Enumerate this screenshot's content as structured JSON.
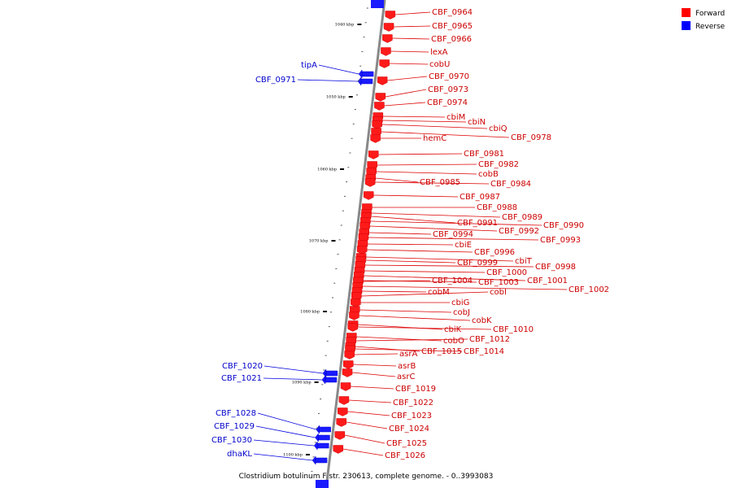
{
  "caption": "Clostridium botulinum F str. 230613, complete genome. - 0..3993083",
  "legend": [
    {
      "label": "Forward",
      "color": "#ff0000"
    },
    {
      "label": "Reverse",
      "color": "#0000ff"
    }
  ],
  "ticks": [
    "1040 kbp",
    "1050 kbp",
    "1060 kbp",
    "1070 kbp",
    "1080 kbp",
    "1090 kbp",
    "1100 kbp"
  ],
  "forward_genes": [
    "CBF_0964",
    "CBF_0965",
    "CBF_0966",
    "lexA",
    "cobU",
    "CBF_0970",
    "CBF_0973",
    "CBF_0974",
    "cbiM",
    "cbiN",
    "cbiQ",
    "CBF_0978",
    "hemC",
    "CBF_0981",
    "CBF_0982",
    "cobB",
    "CBF_0985",
    "CBF_0984",
    "CBF_0987",
    "CBF_0988",
    "CBF_0989",
    "CBF_0991",
    "CBF_0990",
    "CBF_0992",
    "CBF_0994",
    "CBF_0993",
    "cbiE",
    "CBF_0996",
    "cbiT",
    "CBF_0999",
    "CBF_0998",
    "CBF_1000",
    "CBF_1001",
    "CBF_1004",
    "CBF_1003",
    "CBF_1002",
    "cobM",
    "cobI",
    "cbiG",
    "cobJ",
    "cobK",
    "cbiK",
    "CBF_1010",
    "cobO",
    "CBF_1012",
    "CBF_1015",
    "CBF_1014",
    "asrA",
    "asrB",
    "asrC",
    "CBF_1019",
    "CBF_1022",
    "CBF_1023",
    "CBF_1024",
    "CBF_1025",
    "CBF_1026"
  ],
  "reverse_genes": [
    "tipA",
    "CBF_0971",
    "CBF_1020",
    "CBF_1021",
    "CBF_1028",
    "CBF_1029",
    "CBF_1030",
    "dhaKL"
  ]
}
